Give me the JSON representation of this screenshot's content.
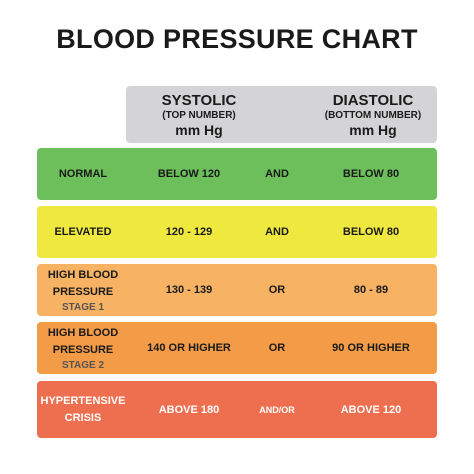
{
  "title": "BLOOD PRESSURE CHART",
  "header": {
    "systolic": {
      "label": "SYSTOLIC",
      "sub": "(TOP NUMBER)",
      "unit": "mm Hg"
    },
    "diastolic": {
      "label": "DIASTOLIC",
      "sub": "(BOTTOM NUMBER)",
      "unit": "mm Hg"
    }
  },
  "rows": [
    {
      "category": [
        "NORMAL"
      ],
      "systolic": "BELOW 120",
      "conjunction": "AND",
      "diastolic": "BELOW 80",
      "color": "#6cbf5b"
    },
    {
      "category": [
        "ELEVATED"
      ],
      "systolic": "120 - 129",
      "conjunction": "AND",
      "diastolic": "BELOW 80",
      "color": "#efe93f"
    },
    {
      "category": [
        "HIGH BLOOD",
        "PRESSURE"
      ],
      "stage": "STAGE 1",
      "systolic": "130 - 139",
      "conjunction": "OR",
      "diastolic": "80 - 89",
      "color": "#f7b264"
    },
    {
      "category": [
        "HIGH BLOOD",
        "PRESSURE"
      ],
      "stage": "STAGE 2",
      "systolic": "140 OR HIGHER",
      "conjunction": "OR",
      "diastolic": "90 OR HIGHER",
      "color": "#f49b47"
    },
    {
      "category": [
        "HYPERTENSIVE",
        "CRISIS"
      ],
      "systolic": "ABOVE 180",
      "conjunction": "AND/OR",
      "diastolic": "ABOVE 120",
      "color": "#ee6f4f",
      "text_color": "#ffffff"
    }
  ]
}
